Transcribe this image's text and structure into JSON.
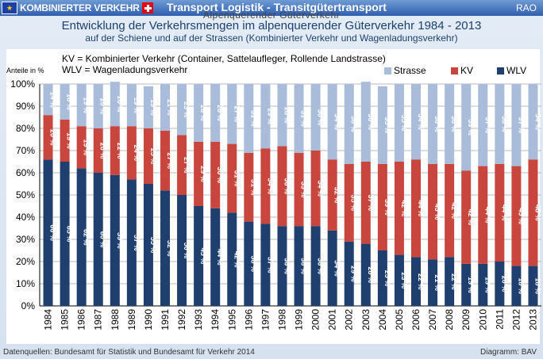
{
  "header": {
    "logo_text": "KOMBINIERTER VERKEHR",
    "title": "Transport Logistik - Transitgütertransport",
    "rao": "RAO"
  },
  "subheader": "Alpenquerender Güterverkehr",
  "chart_data": {
    "type": "bar",
    "stacked": "percent",
    "title": "Entwicklung der Verkehrsmengen im alpenquerender Güterverkehr 1984 - 2013",
    "subtitle": "auf der Schiene und auf der Strassen (Kombinierter Verkehr und Wagenladungsverkehr)",
    "ylabel": "Anteile in %",
    "ylim": [
      0,
      100
    ],
    "yticks": [
      "0%",
      "10%",
      "20%",
      "30%",
      "40%",
      "50%",
      "60%",
      "70%",
      "80%",
      "90%",
      "100%"
    ],
    "grid": true,
    "legend_position": "top-right",
    "legend_note": [
      "KV = Kombinierter Verkehr (Container, Sattelaufleger, Rollende Landstrasse)",
      "WLV = Wagenladungsverkehr"
    ],
    "categories": [
      "1984",
      "1985",
      "1986",
      "1987",
      "1988",
      "1989",
      "1990",
      "1991",
      "1992",
      "1993",
      "1994",
      "1995",
      "1996",
      "1997",
      "1998",
      "1999",
      "2000",
      "2001",
      "2002",
      "2003",
      "2004",
      "2005",
      "2006",
      "2007",
      "2008",
      "2009",
      "2010",
      "2011",
      "2012",
      "2013"
    ],
    "series": [
      {
        "name": "WLV",
        "color": "#1f3f6e",
        "labels": [
          "66 %",
          "65 %",
          "62 %",
          "60 %",
          "59 %",
          "57 %",
          "55 %",
          "52 %",
          "50 %",
          "45 %",
          "44 %",
          "42 %",
          "38 %",
          "37 %",
          "36 %",
          "36 %",
          "36 %",
          "34 %",
          "29 %",
          "28 %",
          "25 %",
          "23 %",
          "22 %",
          "21 %",
          "22 %",
          "19 %",
          "19 %",
          "20 %",
          "18 %",
          "18 %"
        ],
        "values": [
          66,
          65,
          62,
          60,
          59,
          57,
          55,
          52,
          50,
          45,
          44,
          42,
          38,
          37,
          36,
          36,
          36,
          34,
          29,
          28,
          25,
          23,
          22,
          21,
          22,
          19,
          19,
          20,
          18,
          18
        ]
      },
      {
        "name": "KV",
        "color": "#c8463e",
        "labels": [
          "20 %",
          "19 %",
          "19 %",
          "20 %",
          "22 %",
          "24 %",
          "25 %",
          "27 %",
          "27 %",
          "29 %",
          "30 %",
          "31 %",
          "31 %",
          "34 %",
          "36 %",
          "33 %",
          "34 %",
          "32 %",
          "35 %",
          "37 %",
          "39 %",
          "42 %",
          "44 %",
          "43 %",
          "42 %",
          "42 %",
          "44 %",
          "44 %",
          "45 %",
          "48 %"
        ],
        "values": [
          20,
          19,
          19,
          20,
          22,
          24,
          25,
          27,
          27,
          29,
          30,
          31,
          31,
          34,
          36,
          33,
          34,
          32,
          35,
          37,
          39,
          42,
          44,
          43,
          42,
          42,
          44,
          44,
          45,
          48
        ]
      },
      {
        "name": "Strasse",
        "color": "#a9bcd9",
        "labels": [
          "14 %",
          "16 %",
          "19 %",
          "20 %",
          "20 %",
          "19 %",
          "19 %",
          "21 %",
          "23 %",
          "26 %",
          "26 %",
          "27 %",
          "31 %",
          "29 %",
          "28 %",
          "31 %",
          "30 %",
          "34 %",
          "36 %",
          "36 %",
          "35 %",
          "35 %",
          "34 %",
          "36 %",
          "36 %",
          "39 %",
          "37 %",
          "36 %",
          "37 %",
          "34 %"
        ],
        "values": [
          14,
          16,
          19,
          20,
          20,
          19,
          19,
          21,
          23,
          26,
          26,
          27,
          31,
          29,
          28,
          31,
          30,
          34,
          36,
          36,
          35,
          35,
          34,
          36,
          36,
          39,
          37,
          36,
          37,
          34
        ]
      }
    ]
  },
  "footer": {
    "source": "Datenquellen: Bundesamt für Statistik und Bundesamt für Verkehr 2014",
    "diagram": "Diagramm: BAV"
  }
}
